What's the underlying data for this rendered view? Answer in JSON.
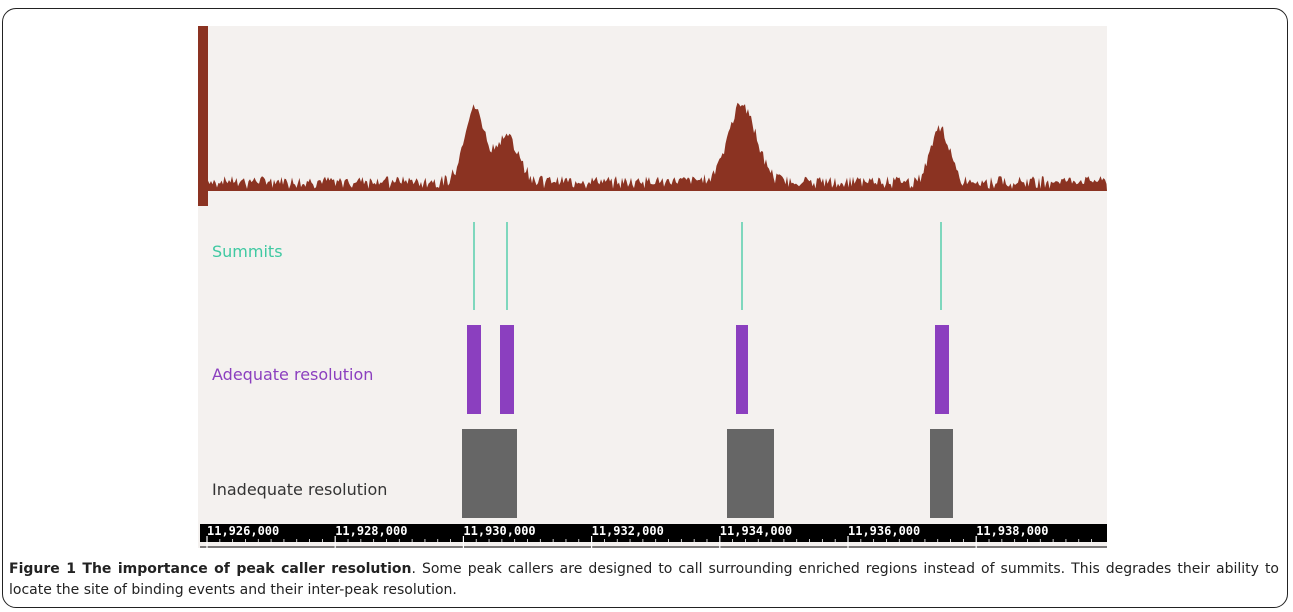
{
  "figure": {
    "tracks": {
      "summits_label": "Summits",
      "adequate_label": "Adequate resolution",
      "inadequate_label": "Inadequate resolution"
    },
    "ruler": {
      "ticks": [
        "11,926,000",
        "11,928,000",
        "11,930,000",
        "11,932,000",
        "11,934,000",
        "11,936,000",
        "11,938,000"
      ]
    },
    "caption": {
      "title": "Figure 1 The importance of peak caller resolution",
      "body": ". Some peak callers are designed to call surrounding enriched regions instead of summits. This degrades their ability to locate the site of binding events and their inter-peak resolution."
    },
    "colors": {
      "signal": "#8b3322",
      "summit": "#3fc9a2",
      "adequate": "#8b3fbf",
      "inadequate": "#666666",
      "ruler": "#000000",
      "panel": "#f4f1ef"
    }
  }
}
